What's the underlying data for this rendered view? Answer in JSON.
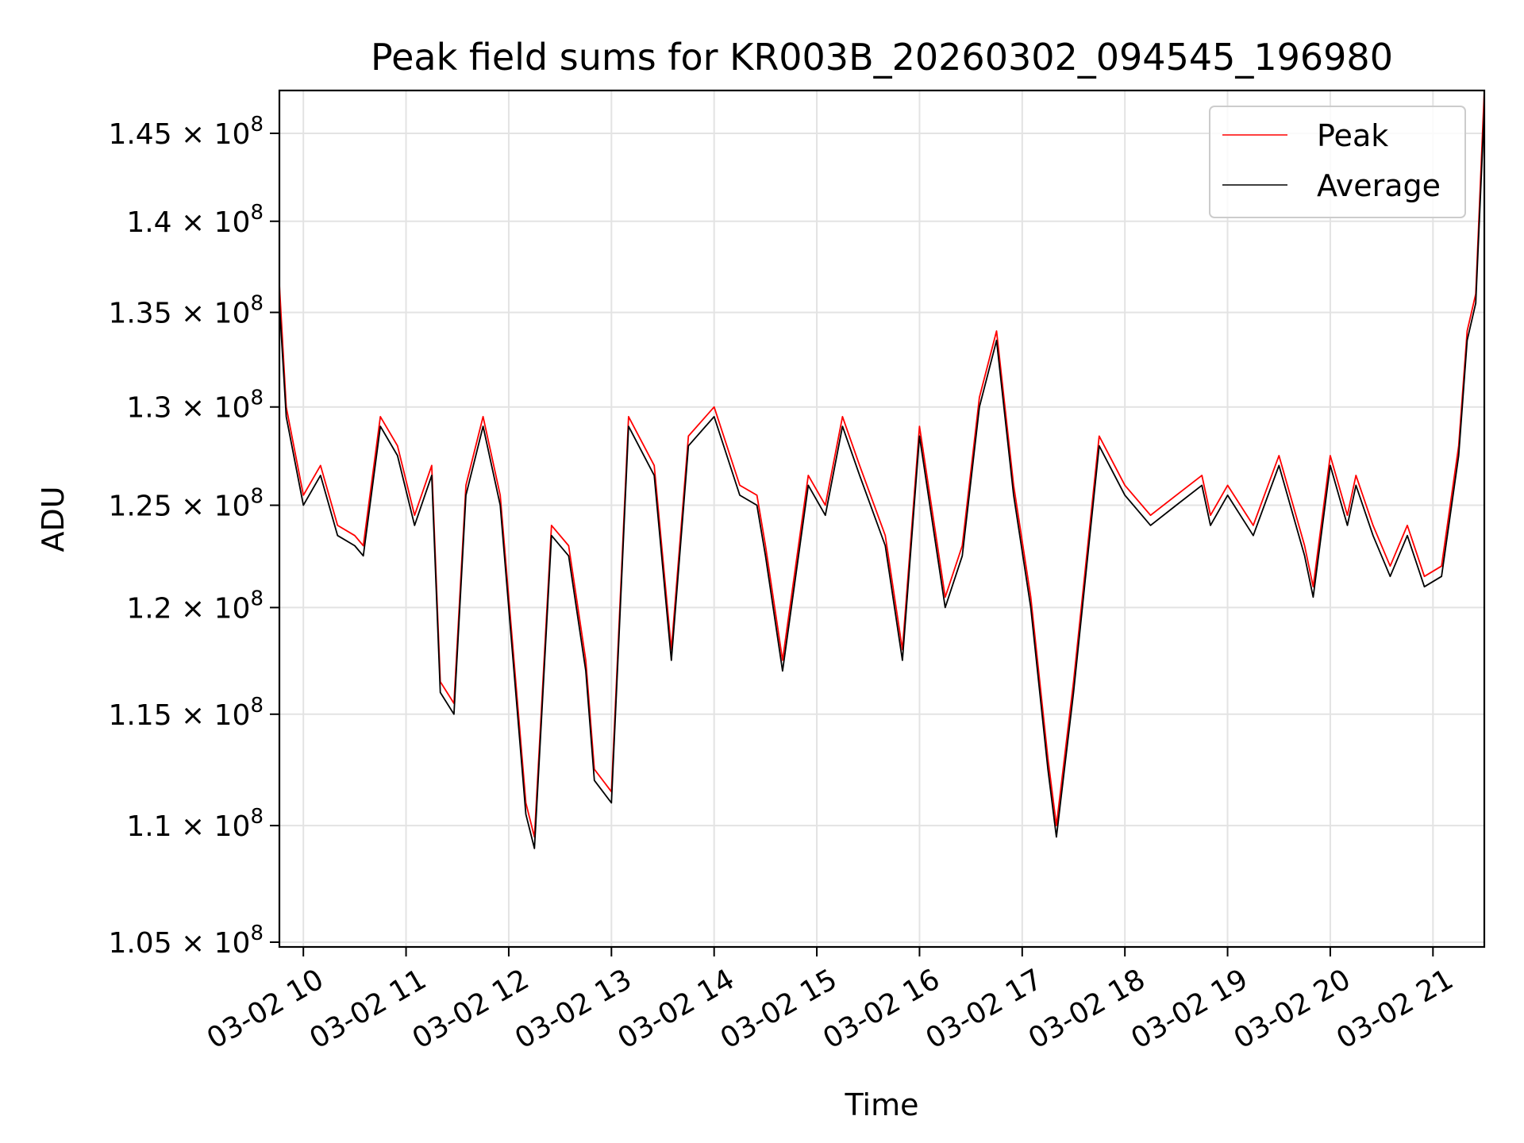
{
  "chart_data": {
    "type": "line",
    "title": "Peak field sums for KR003B_20260302_094545_196980",
    "xlabel": "Time",
    "ylabel": "ADU",
    "y_scale": "log",
    "xlim": [
      "2026-03-02 09:46",
      "2026-03-02 21:30"
    ],
    "ylim": [
      104800000,
      147500000
    ],
    "grid": true,
    "legend_position": "top-right",
    "x_ticks": [
      {
        "value": "2026-03-02 10:00",
        "label": "03-02 10"
      },
      {
        "value": "2026-03-02 11:00",
        "label": "03-02 11"
      },
      {
        "value": "2026-03-02 12:00",
        "label": "03-02 12"
      },
      {
        "value": "2026-03-02 13:00",
        "label": "03-02 13"
      },
      {
        "value": "2026-03-02 14:00",
        "label": "03-02 14"
      },
      {
        "value": "2026-03-02 15:00",
        "label": "03-02 15"
      },
      {
        "value": "2026-03-02 16:00",
        "label": "03-02 16"
      },
      {
        "value": "2026-03-02 17:00",
        "label": "03-02 17"
      },
      {
        "value": "2026-03-02 18:00",
        "label": "03-02 18"
      },
      {
        "value": "2026-03-02 19:00",
        "label": "03-02 19"
      },
      {
        "value": "2026-03-02 20:00",
        "label": "03-02 20"
      },
      {
        "value": "2026-03-02 21:00",
        "label": "03-02 21"
      }
    ],
    "y_ticks": [
      {
        "value": 105000000,
        "mantissa": "1.05",
        "base": "10",
        "exponent": "8"
      },
      {
        "value": 110000000,
        "mantissa": "1.1",
        "base": "10",
        "exponent": "8"
      },
      {
        "value": 115000000,
        "mantissa": "1.15",
        "base": "10",
        "exponent": "8"
      },
      {
        "value": 120000000,
        "mantissa": "1.2",
        "base": "10",
        "exponent": "8"
      },
      {
        "value": 125000000,
        "mantissa": "1.25",
        "base": "10",
        "exponent": "8"
      },
      {
        "value": 130000000,
        "mantissa": "1.3",
        "base": "10",
        "exponent": "8"
      },
      {
        "value": 135000000,
        "mantissa": "1.35",
        "base": "10",
        "exponent": "8"
      },
      {
        "value": 140000000,
        "mantissa": "1.4",
        "base": "10",
        "exponent": "8"
      },
      {
        "value": 145000000,
        "mantissa": "1.45",
        "base": "10",
        "exponent": "8"
      }
    ],
    "x": [
      "2026-03-02 09:46",
      "2026-03-02 09:50",
      "2026-03-02 10:00",
      "2026-03-02 10:10",
      "2026-03-02 10:20",
      "2026-03-02 10:30",
      "2026-03-02 10:35",
      "2026-03-02 10:45",
      "2026-03-02 10:55",
      "2026-03-02 11:05",
      "2026-03-02 11:15",
      "2026-03-02 11:20",
      "2026-03-02 11:28",
      "2026-03-02 11:35",
      "2026-03-02 11:45",
      "2026-03-02 11:55",
      "2026-03-02 12:00",
      "2026-03-02 12:10",
      "2026-03-02 12:15",
      "2026-03-02 12:25",
      "2026-03-02 12:35",
      "2026-03-02 12:45",
      "2026-03-02 12:50",
      "2026-03-02 13:00",
      "2026-03-02 13:10",
      "2026-03-02 13:25",
      "2026-03-02 13:35",
      "2026-03-02 13:45",
      "2026-03-02 14:00",
      "2026-03-02 14:15",
      "2026-03-02 14:25",
      "2026-03-02 14:30",
      "2026-03-02 14:40",
      "2026-03-02 14:55",
      "2026-03-02 15:05",
      "2026-03-02 15:15",
      "2026-03-02 15:25",
      "2026-03-02 15:40",
      "2026-03-02 15:50",
      "2026-03-02 16:00",
      "2026-03-02 16:15",
      "2026-03-02 16:25",
      "2026-03-02 16:35",
      "2026-03-02 16:45",
      "2026-03-02 16:55",
      "2026-03-02 17:05",
      "2026-03-02 17:15",
      "2026-03-02 17:20",
      "2026-03-02 17:30",
      "2026-03-02 17:45",
      "2026-03-02 18:00",
      "2026-03-02 18:15",
      "2026-03-02 18:30",
      "2026-03-02 18:45",
      "2026-03-02 18:50",
      "2026-03-02 19:00",
      "2026-03-02 19:15",
      "2026-03-02 19:30",
      "2026-03-02 19:45",
      "2026-03-02 19:50",
      "2026-03-02 20:00",
      "2026-03-02 20:10",
      "2026-03-02 20:15",
      "2026-03-02 20:25",
      "2026-03-02 20:35",
      "2026-03-02 20:45",
      "2026-03-02 20:55",
      "2026-03-02 21:05",
      "2026-03-02 21:15",
      "2026-03-02 21:20",
      "2026-03-02 21:25",
      "2026-03-02 21:30"
    ],
    "series": [
      {
        "name": "Peak",
        "color": "#ff0000",
        "values": [
          136500000,
          130000000,
          125500000,
          127000000,
          124000000,
          123500000,
          123000000,
          129500000,
          128000000,
          124500000,
          127000000,
          116500000,
          115500000,
          126000000,
          129500000,
          125500000,
          120500000,
          111000000,
          109500000,
          124000000,
          123000000,
          117500000,
          112500000,
          111500000,
          129500000,
          127000000,
          118000000,
          128500000,
          130000000,
          126000000,
          125500000,
          123000000,
          117500000,
          126500000,
          125000000,
          129500000,
          127000000,
          123500000,
          118000000,
          129000000,
          120500000,
          123000000,
          130500000,
          134000000,
          126000000,
          120500000,
          113000000,
          110000000,
          116500000,
          128500000,
          126000000,
          124500000,
          125500000,
          126500000,
          124500000,
          126000000,
          124000000,
          127500000,
          123000000,
          121000000,
          127500000,
          124500000,
          126500000,
          124000000,
          122000000,
          124000000,
          121500000,
          122000000,
          128000000,
          134000000,
          136000000,
          147500000
        ]
      },
      {
        "name": "Average",
        "color": "#000000",
        "values": [
          135500000,
          129500000,
          125000000,
          126500000,
          123500000,
          123000000,
          122500000,
          129000000,
          127500000,
          124000000,
          126500000,
          116000000,
          115000000,
          125500000,
          129000000,
          125000000,
          120000000,
          110500000,
          109000000,
          123500000,
          122500000,
          117000000,
          112000000,
          111000000,
          129000000,
          126500000,
          117500000,
          128000000,
          129500000,
          125500000,
          125000000,
          122500000,
          117000000,
          126000000,
          124500000,
          129000000,
          126500000,
          123000000,
          117500000,
          128500000,
          120000000,
          122500000,
          130000000,
          133500000,
          125500000,
          120000000,
          112500000,
          109500000,
          116000000,
          128000000,
          125500000,
          124000000,
          125000000,
          126000000,
          124000000,
          125500000,
          123500000,
          127000000,
          122500000,
          120500000,
          127000000,
          124000000,
          126000000,
          123500000,
          121500000,
          123500000,
          121000000,
          121500000,
          127500000,
          133500000,
          135500000,
          146500000
        ]
      }
    ]
  }
}
